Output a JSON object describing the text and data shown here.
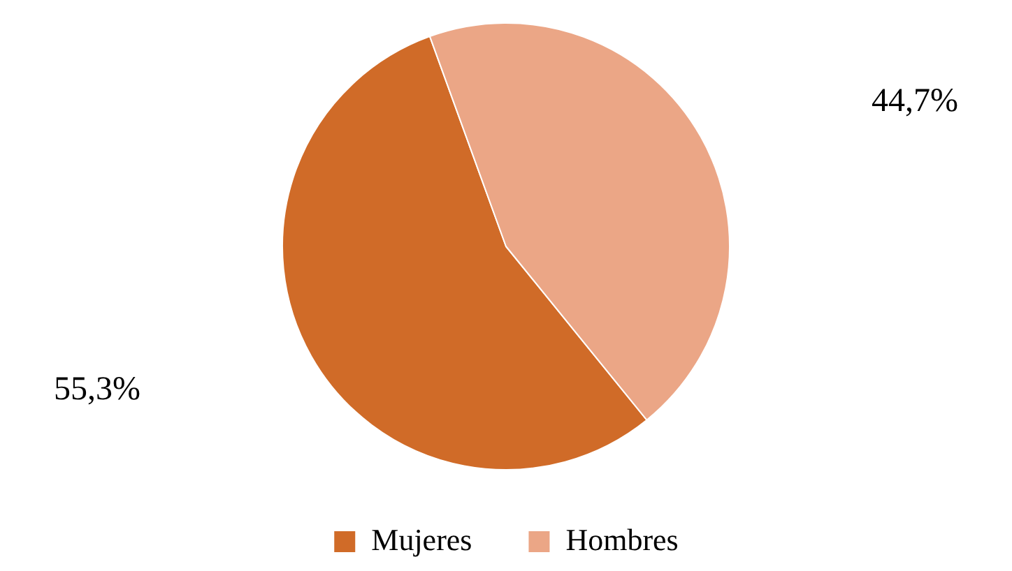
{
  "chart_data": {
    "type": "pie",
    "categories": [
      "Mujeres",
      "Hombres"
    ],
    "values": [
      55.3,
      44.7
    ],
    "colors": [
      "#d06b28",
      "#eba686"
    ],
    "value_labels": [
      "55,3%",
      "44,7%"
    ],
    "legend": "bottom"
  }
}
